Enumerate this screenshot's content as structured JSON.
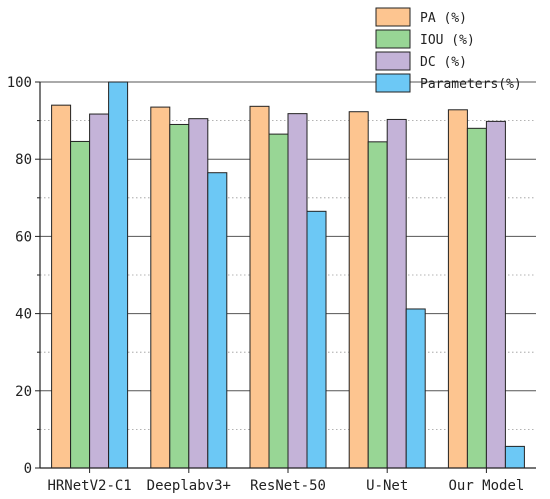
{
  "chart_data": {
    "type": "bar",
    "title": "",
    "xlabel": "",
    "ylabel": "",
    "ylim": [
      0,
      100
    ],
    "yticks": [
      0,
      20,
      40,
      60,
      80,
      100
    ],
    "grid": "horizontal",
    "legend_position": "top-right",
    "categories": [
      "HRNetV2-C1",
      "Deeplabv3+",
      "ResNet-50",
      "U-Net",
      "Our Model"
    ],
    "series": [
      {
        "name": "PA (%)",
        "color": "#FDC590",
        "values": [
          94.0,
          93.5,
          93.7,
          92.3,
          92.8
        ]
      },
      {
        "name": "IOU (%)",
        "color": "#98D695",
        "values": [
          84.6,
          89.0,
          86.5,
          84.5,
          88.0
        ]
      },
      {
        "name": "DC (%)",
        "color": "#C4B3D8",
        "values": [
          91.7,
          90.5,
          91.8,
          90.3,
          89.8
        ]
      },
      {
        "name": "Parameters(%)",
        "color": "#6CC8F5",
        "values": [
          100.0,
          76.5,
          66.5,
          41.2,
          5.6
        ]
      }
    ]
  }
}
